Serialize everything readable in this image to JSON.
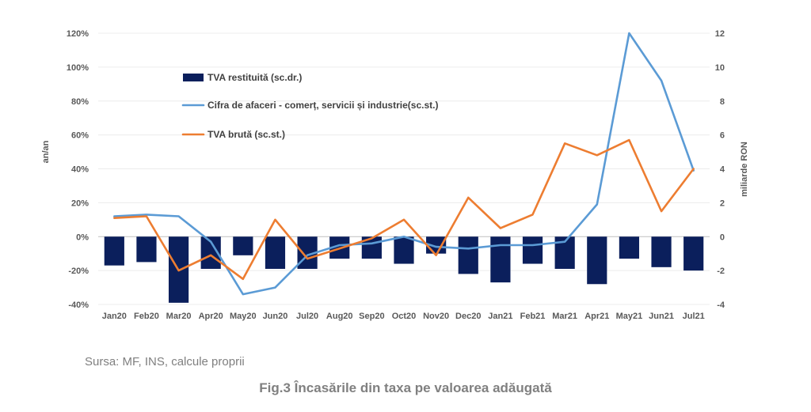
{
  "chart_data": {
    "type": "bar",
    "categories": [
      "Jan20",
      "Feb20",
      "Mar20",
      "Apr20",
      "May20",
      "Jun20",
      "Jul20",
      "Aug20",
      "Sep20",
      "Oct20",
      "Nov20",
      "Dec20",
      "Jan21",
      "Feb21",
      "Mar21",
      "Apr21",
      "May21",
      "Jun21",
      "Jul21"
    ],
    "y_left": {
      "label": "an/an",
      "ticks": [
        "120%",
        "100%",
        "80%",
        "60%",
        "40%",
        "20%",
        "0%",
        "-20%",
        "-40%"
      ],
      "ylim": [
        -40,
        120
      ]
    },
    "y_right": {
      "label": "miliarde RON",
      "ticks": [
        "12",
        "10",
        "8",
        "6",
        "4",
        "2",
        "0",
        "-2",
        "-4"
      ],
      "ylim": [
        -4,
        12
      ]
    },
    "series": [
      {
        "name": "TVA restituită (sc.dr.)",
        "kind": "bar",
        "axis": "right",
        "color": "#0b1f5c",
        "values": [
          -1.7,
          -1.5,
          -3.9,
          -1.9,
          -1.1,
          -1.9,
          -1.9,
          -1.3,
          -1.3,
          -1.6,
          -1.0,
          -2.2,
          -2.7,
          -1.6,
          -1.9,
          -2.8,
          -1.3,
          -1.8,
          -2.0
        ]
      },
      {
        "name": "Cifra de afaceri - comerț, servicii și industrie(sc.st.)",
        "kind": "line",
        "axis": "left",
        "color": "#5b9bd5",
        "values": [
          12,
          13,
          12,
          -3,
          -34,
          -30,
          -11,
          -5,
          -4,
          0,
          -6,
          -7,
          -5,
          -5,
          -3,
          19,
          120,
          92,
          39
        ]
      },
      {
        "name": "TVA brută (sc.st.)",
        "kind": "line",
        "axis": "left",
        "color": "#ed7d31",
        "values": [
          11,
          12,
          -20,
          -11,
          -25,
          10,
          -13,
          -7,
          -1,
          10,
          -11,
          23,
          5,
          13,
          55,
          48,
          57,
          15,
          40
        ]
      }
    ]
  },
  "source_text": "Sursa: MF, INS, calcule proprii",
  "caption": "Fig.3 Încasările din taxa pe valoarea adăugată"
}
